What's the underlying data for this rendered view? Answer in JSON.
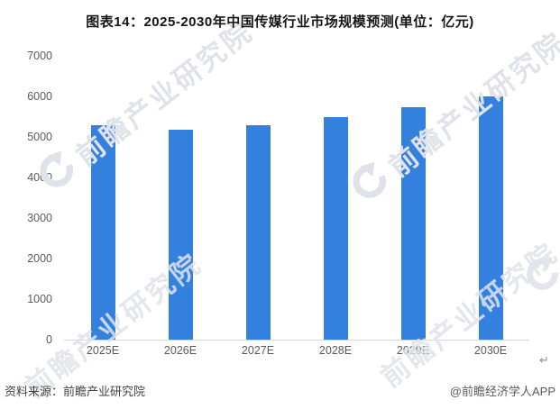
{
  "title": "图表14：2025-2030年中国传媒行业市场规模预测(单位：亿元)",
  "chart_data": {
    "type": "bar",
    "categories": [
      "2025E",
      "2026E",
      "2027E",
      "2028E",
      "2029E",
      "2030E"
    ],
    "values": [
      5300,
      5180,
      5280,
      5490,
      5730,
      6000
    ],
    "title": "图表14：2025-2030年中国传媒行业市场规模预测(单位：亿元)",
    "xlabel": "",
    "ylabel": "",
    "unit": "亿元",
    "ylim": [
      0,
      7000
    ],
    "yticks": [
      0,
      1000,
      2000,
      3000,
      4000,
      5000,
      6000,
      7000
    ],
    "bar_color": "#3380df",
    "axis_line_color": "#d7d7d7",
    "grid": false,
    "legend": false
  },
  "watermark": {
    "text": "前瞻产业研究院",
    "logo": "qianzhan-swoosh"
  },
  "footer": {
    "source": "资料来源：前瞻产业研究院",
    "credit": "@前瞻经济学人APP"
  },
  "misc": {
    "return_mark": "↵"
  }
}
